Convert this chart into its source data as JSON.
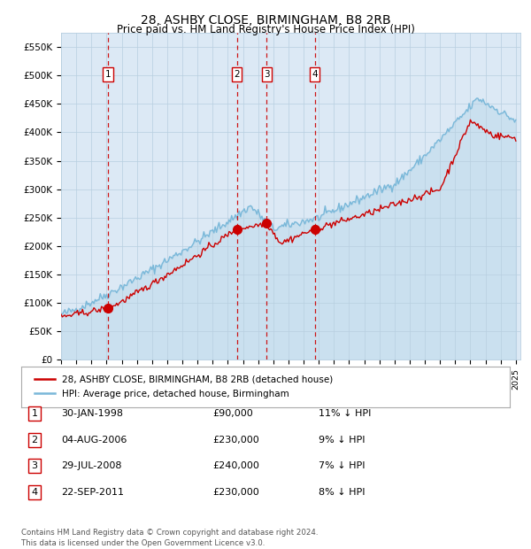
{
  "title": "28, ASHBY CLOSE, BIRMINGHAM, B8 2RB",
  "subtitle": "Price paid vs. HM Land Registry's House Price Index (HPI)",
  "background_color": "#dce9f5",
  "plot_bg_color": "#dce9f5",
  "ylim": [
    0,
    575000
  ],
  "yticks": [
    0,
    50000,
    100000,
    150000,
    200000,
    250000,
    300000,
    350000,
    400000,
    450000,
    500000,
    550000
  ],
  "ytick_labels": [
    "£0",
    "£50K",
    "£100K",
    "£150K",
    "£200K",
    "£250K",
    "£300K",
    "£350K",
    "£400K",
    "£450K",
    "£500K",
    "£550K"
  ],
  "hpi_color": "#7ab8d9",
  "price_color": "#cc0000",
  "vline_color": "#cc0000",
  "grid_color": "#b8cfe0",
  "transactions": [
    {
      "label": "1",
      "date": 1998.08,
      "price": 90000
    },
    {
      "label": "2",
      "date": 2006.59,
      "price": 230000
    },
    {
      "label": "3",
      "date": 2008.57,
      "price": 240000
    },
    {
      "label": "4",
      "date": 2011.73,
      "price": 230000
    }
  ],
  "legend_label_price": "28, ASHBY CLOSE, BIRMINGHAM, B8 2RB (detached house)",
  "legend_label_hpi": "HPI: Average price, detached house, Birmingham",
  "footer_text": "Contains HM Land Registry data © Crown copyright and database right 2024.\nThis data is licensed under the Open Government Licence v3.0.",
  "table_rows": [
    {
      "num": "1",
      "date": "30-JAN-1998",
      "price": "£90,000",
      "hpi": "11% ↓ HPI"
    },
    {
      "num": "2",
      "date": "04-AUG-2006",
      "price": "£230,000",
      "hpi": "9% ↓ HPI"
    },
    {
      "num": "3",
      "date": "29-JUL-2008",
      "price": "£240,000",
      "hpi": "7% ↓ HPI"
    },
    {
      "num": "4",
      "date": "22-SEP-2011",
      "price": "£230,000",
      "hpi": "8% ↓ HPI"
    }
  ]
}
